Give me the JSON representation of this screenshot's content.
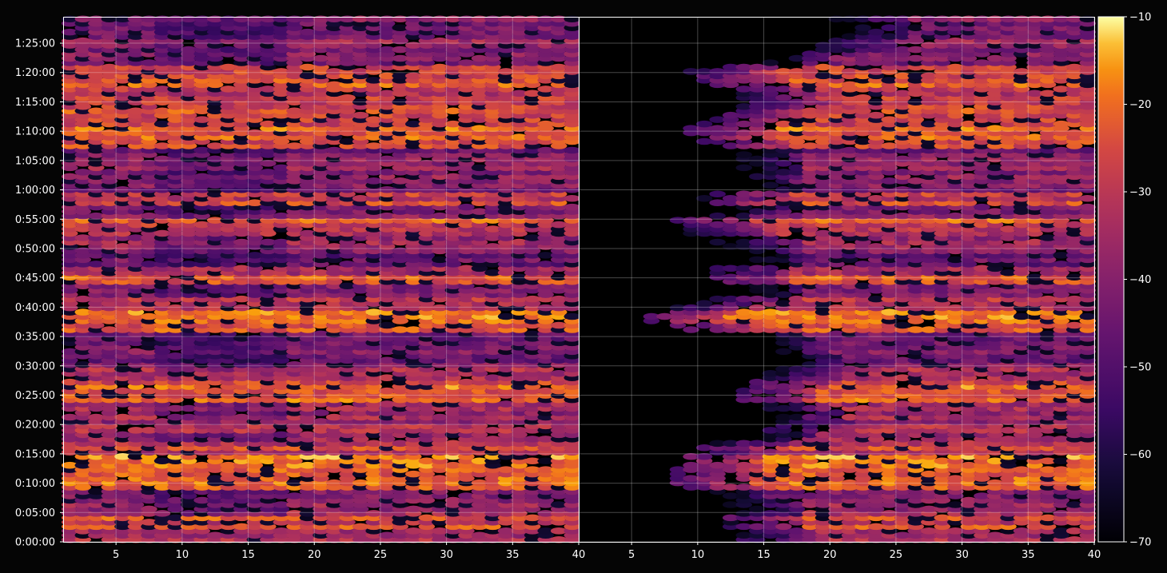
{
  "chart_data": {
    "type": "heatmap",
    "title": "",
    "xlabel": "",
    "ylabel": "",
    "panels": [
      {
        "name": "",
        "x_ticks": [
          "5",
          "10",
          "15",
          "20",
          "25",
          "30",
          "35",
          "40"
        ],
        "xlim": [
          1,
          40
        ]
      },
      {
        "name": "",
        "x_ticks": [
          "5",
          "10",
          "15",
          "20",
          "25",
          "30",
          "35",
          "40"
        ],
        "xlim": [
          1,
          40
        ]
      }
    ],
    "x_tick_values": [
      5,
      10,
      15,
      20,
      25,
      30,
      35,
      40
    ],
    "y_ticks": [
      "0:00:00",
      "0:05:00",
      "0:10:00",
      "0:15:00",
      "0:20:00",
      "0:25:00",
      "0:30:00",
      "0:35:00",
      "0:40:00",
      "0:45:00",
      "0:50:00",
      "0:55:00",
      "1:00:00",
      "1:05:00",
      "1:10:00",
      "1:15:00",
      "1:20:00",
      "1:25:00"
    ],
    "y_tick_minutes": [
      0,
      5,
      10,
      15,
      20,
      25,
      30,
      35,
      40,
      45,
      50,
      55,
      60,
      65,
      70,
      75,
      80,
      85
    ],
    "ylim_minutes": [
      0,
      89.5
    ],
    "colorbar": {
      "ticks": [
        "−10",
        "−20",
        "−30",
        "−40",
        "−50",
        "−60",
        "−70"
      ],
      "tick_values": [
        -10,
        -20,
        -30,
        -40,
        -50,
        -60,
        -70
      ],
      "range": [
        -70,
        -10
      ],
      "colormap": "inferno"
    },
    "row_profile_minutes": [
      {
        "t": 1.0,
        "v": -33
      },
      {
        "t": 3.2,
        "v": -27
      },
      {
        "t": 5.6,
        "v": -38
      },
      {
        "t": 8.0,
        "v": -42
      },
      {
        "t": 9.6,
        "v": -18
      },
      {
        "t": 11.2,
        "v": -20
      },
      {
        "t": 12.8,
        "v": -22
      },
      {
        "t": 16.6,
        "v": -28
      },
      {
        "t": 17.4,
        "v": -36
      },
      {
        "t": 19.8,
        "v": -34
      },
      {
        "t": 21.5,
        "v": -38
      },
      {
        "t": 23.0,
        "v": -37
      },
      {
        "t": 25.0,
        "v": -23
      },
      {
        "t": 26.2,
        "v": -20
      },
      {
        "t": 27.6,
        "v": -30
      },
      {
        "t": 30.0,
        "v": -36
      },
      {
        "t": 31.8,
        "v": -43
      },
      {
        "t": 33.2,
        "v": -40
      },
      {
        "t": 35.0,
        "v": -42
      },
      {
        "t": 36.6,
        "v": -22
      },
      {
        "t": 37.6,
        "v": -21
      },
      {
        "t": 38.7,
        "v": -19
      },
      {
        "t": 40.6,
        "v": -32
      },
      {
        "t": 42.8,
        "v": -40
      },
      {
        "t": 44.8,
        "v": -24
      },
      {
        "t": 46.0,
        "v": -34
      },
      {
        "t": 47.8,
        "v": -46
      },
      {
        "t": 50.0,
        "v": -37
      },
      {
        "t": 51.6,
        "v": -39
      },
      {
        "t": 53.2,
        "v": -27
      },
      {
        "t": 54.8,
        "v": -24
      },
      {
        "t": 56.2,
        "v": -40
      },
      {
        "t": 58.8,
        "v": -26
      },
      {
        "t": 60.6,
        "v": -42
      },
      {
        "t": 62.0,
        "v": -36
      },
      {
        "t": 63.5,
        "v": -38
      },
      {
        "t": 65.8,
        "v": -42
      },
      {
        "t": 68.0,
        "v": -28
      },
      {
        "t": 69.4,
        "v": -26
      },
      {
        "t": 70.6,
        "v": -22
      },
      {
        "t": 71.8,
        "v": -24
      },
      {
        "t": 73.4,
        "v": -26
      },
      {
        "t": 75.0,
        "v": -30
      },
      {
        "t": 76.4,
        "v": -28
      },
      {
        "t": 78.0,
        "v": -22
      },
      {
        "t": 79.0,
        "v": -21
      },
      {
        "t": 80.2,
        "v": -24
      },
      {
        "t": 82.6,
        "v": -40
      },
      {
        "t": 84.4,
        "v": -38
      },
      {
        "t": 86.4,
        "v": -40
      },
      {
        "t": 88.6,
        "v": -42
      }
    ],
    "right_panel_onset_x": [
      {
        "t": 0,
        "x": 15
      },
      {
        "t": 5,
        "x": 14
      },
      {
        "t": 8,
        "x": 11
      },
      {
        "t": 12,
        "x": 10
      },
      {
        "t": 16,
        "x": 12
      },
      {
        "t": 20,
        "x": 18
      },
      {
        "t": 25,
        "x": 15
      },
      {
        "t": 30,
        "x": 18
      },
      {
        "t": 35,
        "x": 14
      },
      {
        "t": 38,
        "x": 7
      },
      {
        "t": 42,
        "x": 14
      },
      {
        "t": 46,
        "x": 13
      },
      {
        "t": 50,
        "x": 13
      },
      {
        "t": 55,
        "x": 10
      },
      {
        "t": 60,
        "x": 13
      },
      {
        "t": 65,
        "x": 14
      },
      {
        "t": 70,
        "x": 11
      },
      {
        "t": 75,
        "x": 16
      },
      {
        "t": 80,
        "x": 11
      },
      {
        "t": 85,
        "x": 22
      },
      {
        "t": 89.5,
        "x": 22
      }
    ],
    "grid": true
  }
}
